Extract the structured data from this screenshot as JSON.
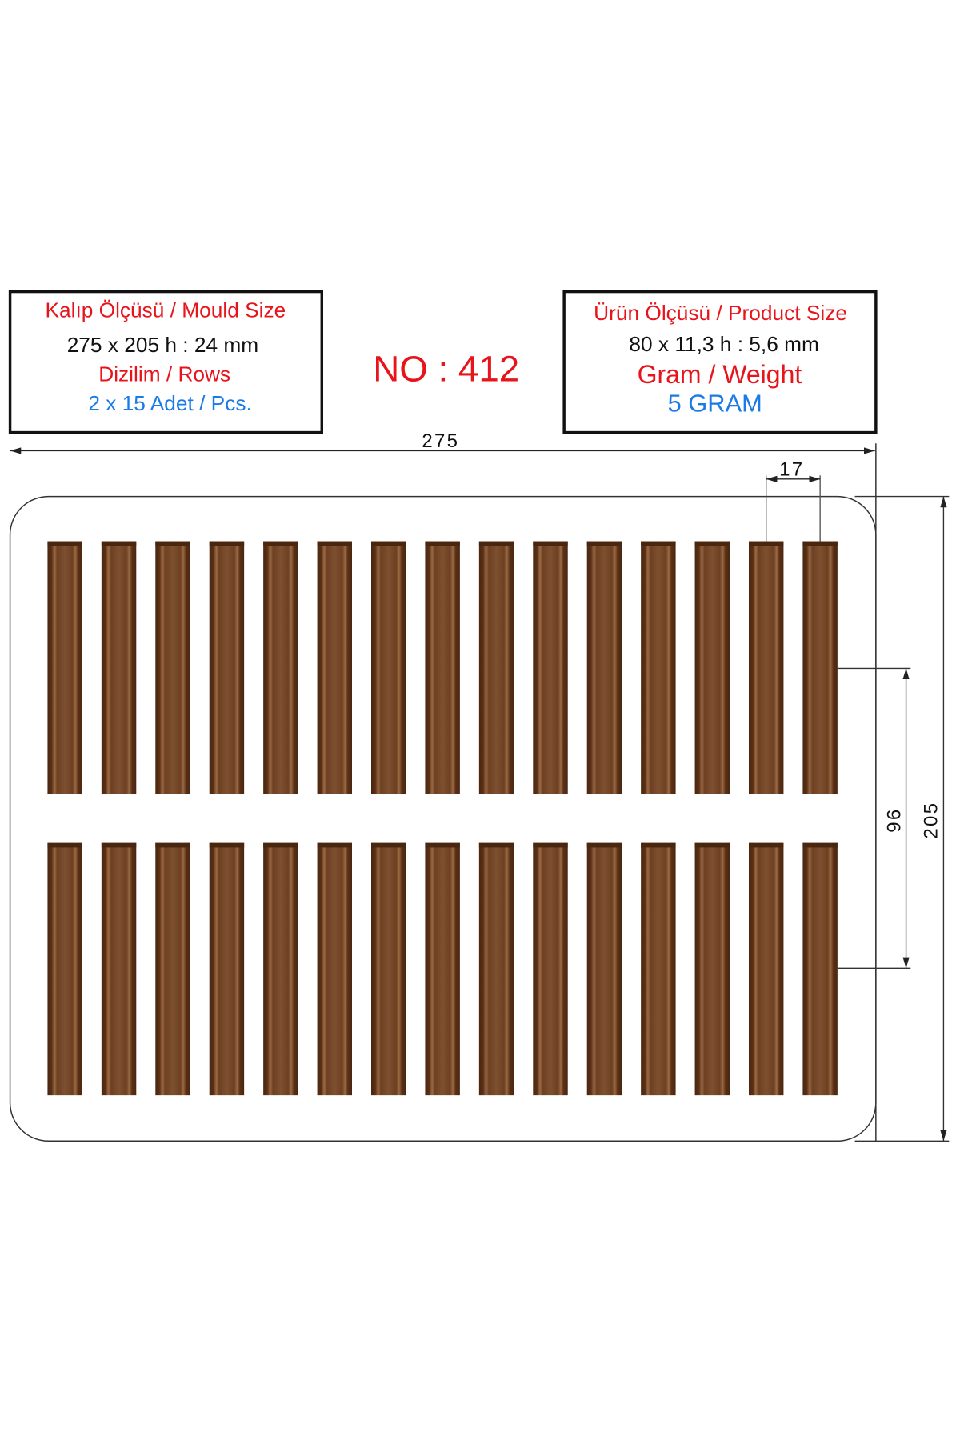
{
  "mould_box": {
    "title": "Kalıp Ölçüsü / Mould Size",
    "size": "275 x 205 h : 24 mm",
    "rows_label": "Dizilim / Rows",
    "rows_value": "2 x 15 Adet / Pcs."
  },
  "product_number": "NO : 412",
  "product_box": {
    "title": "Ürün Ölçüsü / Product Size",
    "size": "80 x 11,3 h : 5,6 mm",
    "weight_label": "Gram / Weight",
    "weight_value": "5 GRAM"
  },
  "dimensions": {
    "width": "275",
    "height": "205",
    "cavity_pitch": "17",
    "row_spacing": "96"
  },
  "layout_grid": {
    "rows": 2,
    "columns": 15
  },
  "colors": {
    "red": "#e8141c",
    "blue": "#1a7be6",
    "cavity_dark": "#4a260f",
    "cavity_light": "#8a5a36"
  }
}
